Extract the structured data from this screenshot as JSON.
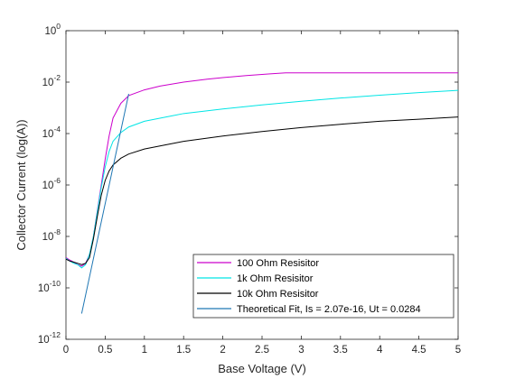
{
  "chart_data": {
    "type": "line",
    "xlabel": "Base Voltage (V)",
    "ylabel": "Collector Current (log(A))",
    "xlim": [
      0,
      5
    ],
    "ylim": [
      1e-12,
      1
    ],
    "yscale": "log",
    "grid": false,
    "legend_position": "bottom-right",
    "x_ticks": [
      "0",
      "0.5",
      "1",
      "1.5",
      "2",
      "2.5",
      "3",
      "3.5",
      "4",
      "4.5",
      "5"
    ],
    "y_ticks": [
      {
        "base": "10",
        "exp": "-12"
      },
      {
        "base": "10",
        "exp": "-10"
      },
      {
        "base": "10",
        "exp": "-8"
      },
      {
        "base": "10",
        "exp": "-6"
      },
      {
        "base": "10",
        "exp": "-4"
      },
      {
        "base": "10",
        "exp": "-2"
      },
      {
        "base": "10",
        "exp": "0"
      }
    ],
    "series": [
      {
        "name": "100 Ohm Resisitor",
        "color": "#cc00cc",
        "points": [
          [
            0,
            1.5e-09
          ],
          [
            0.05,
            1.2e-09
          ],
          [
            0.1,
            1e-09
          ],
          [
            0.15,
            8e-10
          ],
          [
            0.2,
            7e-10
          ],
          [
            0.25,
            9e-10
          ],
          [
            0.3,
            2e-09
          ],
          [
            0.35,
            1e-08
          ],
          [
            0.4,
            1e-07
          ],
          [
            0.45,
            1e-06
          ],
          [
            0.5,
            1e-05
          ],
          [
            0.55,
            8e-05
          ],
          [
            0.6,
            0.0004
          ],
          [
            0.7,
            0.0015
          ],
          [
            0.8,
            0.003
          ],
          [
            1.0,
            0.005
          ],
          [
            1.2,
            0.007
          ],
          [
            1.5,
            0.01
          ],
          [
            1.8,
            0.013
          ],
          [
            2.0,
            0.015
          ],
          [
            2.3,
            0.018
          ],
          [
            2.6,
            0.021
          ],
          [
            2.8,
            0.023
          ],
          [
            3.0,
            0.023
          ],
          [
            3.5,
            0.023
          ],
          [
            4.0,
            0.023
          ],
          [
            4.5,
            0.023
          ],
          [
            5.0,
            0.023
          ]
        ]
      },
      {
        "name": "1k Ohm Resisitor",
        "color": "#00e5e5",
        "points": [
          [
            0,
            1.4e-09
          ],
          [
            0.05,
            1.1e-09
          ],
          [
            0.1,
            9e-10
          ],
          [
            0.15,
            8e-10
          ],
          [
            0.2,
            6e-10
          ],
          [
            0.25,
            8e-10
          ],
          [
            0.3,
            2e-09
          ],
          [
            0.35,
            1e-08
          ],
          [
            0.4,
            9e-08
          ],
          [
            0.45,
            8e-07
          ],
          [
            0.5,
            5e-06
          ],
          [
            0.55,
            2e-05
          ],
          [
            0.6,
            5e-05
          ],
          [
            0.7,
            0.00011
          ],
          [
            0.8,
            0.00018
          ],
          [
            1.0,
            0.0003
          ],
          [
            1.5,
            0.0006
          ],
          [
            2.0,
            0.0009
          ],
          [
            2.5,
            0.0013
          ],
          [
            3.0,
            0.0018
          ],
          [
            3.5,
            0.0024
          ],
          [
            4.0,
            0.0031
          ],
          [
            4.5,
            0.0039
          ],
          [
            5.0,
            0.0048
          ]
        ]
      },
      {
        "name": "10k Ohm Resisitor",
        "color": "#000000",
        "points": [
          [
            0,
            1.3e-09
          ],
          [
            0.05,
            1.1e-09
          ],
          [
            0.1,
            1e-09
          ],
          [
            0.15,
            9e-10
          ],
          [
            0.2,
            8e-10
          ],
          [
            0.25,
            9e-10
          ],
          [
            0.3,
            1.5e-09
          ],
          [
            0.35,
            8e-09
          ],
          [
            0.4,
            6e-08
          ],
          [
            0.45,
            4e-07
          ],
          [
            0.5,
            1.5e-06
          ],
          [
            0.55,
            3.5e-06
          ],
          [
            0.6,
            6e-06
          ],
          [
            0.7,
            1.1e-05
          ],
          [
            0.8,
            1.6e-05
          ],
          [
            1.0,
            2.5e-05
          ],
          [
            1.5,
            5e-05
          ],
          [
            2.0,
            8e-05
          ],
          [
            2.5,
            0.00012
          ],
          [
            3.0,
            0.00017
          ],
          [
            3.5,
            0.00023
          ],
          [
            4.0,
            0.0003
          ],
          [
            4.5,
            0.00036
          ],
          [
            5.0,
            0.00044
          ]
        ]
      },
      {
        "name": "Theoretical Fit, Is = 2.07e-16, Ut = 0.0284",
        "color": "#1f77b4",
        "points": [
          [
            0.2,
            1e-11
          ],
          [
            0.8,
            0.0035
          ]
        ]
      }
    ]
  }
}
